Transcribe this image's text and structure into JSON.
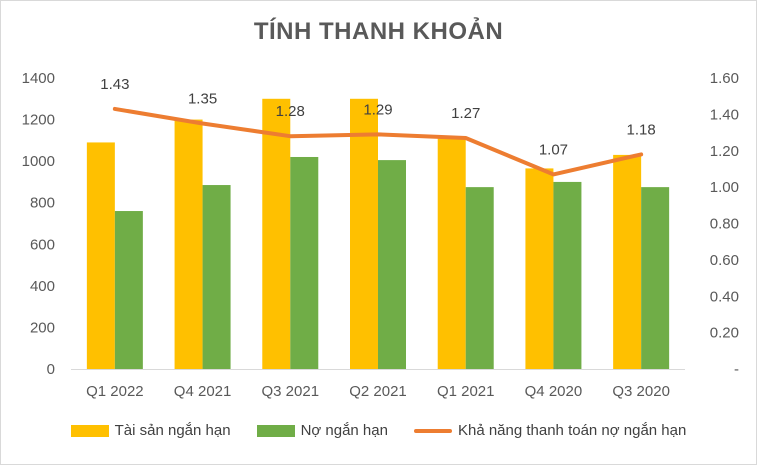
{
  "chart_data": {
    "type": "bar",
    "title": "TÍNH THANH KHOẢN",
    "categories": [
      "Q1 2022",
      "Q4 2021",
      "Q3 2021",
      "Q2 2021",
      "Q1 2021",
      "Q4 2020",
      "Q3 2020"
    ],
    "series": [
      {
        "name": "Tài sản ngắn hạn",
        "type": "bar",
        "axis": "left",
        "color": "#ffc000",
        "values": [
          1090,
          1200,
          1300,
          1300,
          1110,
          965,
          1030
        ]
      },
      {
        "name": "Nợ ngắn hạn",
        "type": "bar",
        "axis": "left",
        "color": "#70ad47",
        "values": [
          760,
          885,
          1020,
          1005,
          875,
          900,
          875
        ]
      },
      {
        "name": "Khả năng thanh toán nợ ngắn hạn",
        "type": "line",
        "axis": "right",
        "color": "#ed7d31",
        "values": [
          1.43,
          1.35,
          1.28,
          1.29,
          1.27,
          1.07,
          1.18
        ],
        "data_labels": [
          "1.43",
          "1.35",
          "1.28",
          "1.29",
          "1.27",
          "1.07",
          "1.18"
        ]
      }
    ],
    "y_left": {
      "ylim": [
        0,
        1400
      ],
      "ticks": [
        0,
        200,
        400,
        600,
        800,
        1000,
        1200,
        1400
      ],
      "tick_labels": [
        "0",
        "200",
        "400",
        "600",
        "800",
        "1000",
        "1200",
        "1400"
      ]
    },
    "y_right": {
      "ylim": [
        0,
        1.6
      ],
      "ticks": [
        0,
        0.2,
        0.4,
        0.6,
        0.8,
        1.0,
        1.2,
        1.4,
        1.6
      ],
      "tick_labels": [
        "-",
        "0.20",
        "0.40",
        "0.60",
        "0.80",
        "1.00",
        "1.20",
        "1.40",
        "1.60"
      ]
    },
    "grid": false,
    "legend_position": "bottom"
  }
}
